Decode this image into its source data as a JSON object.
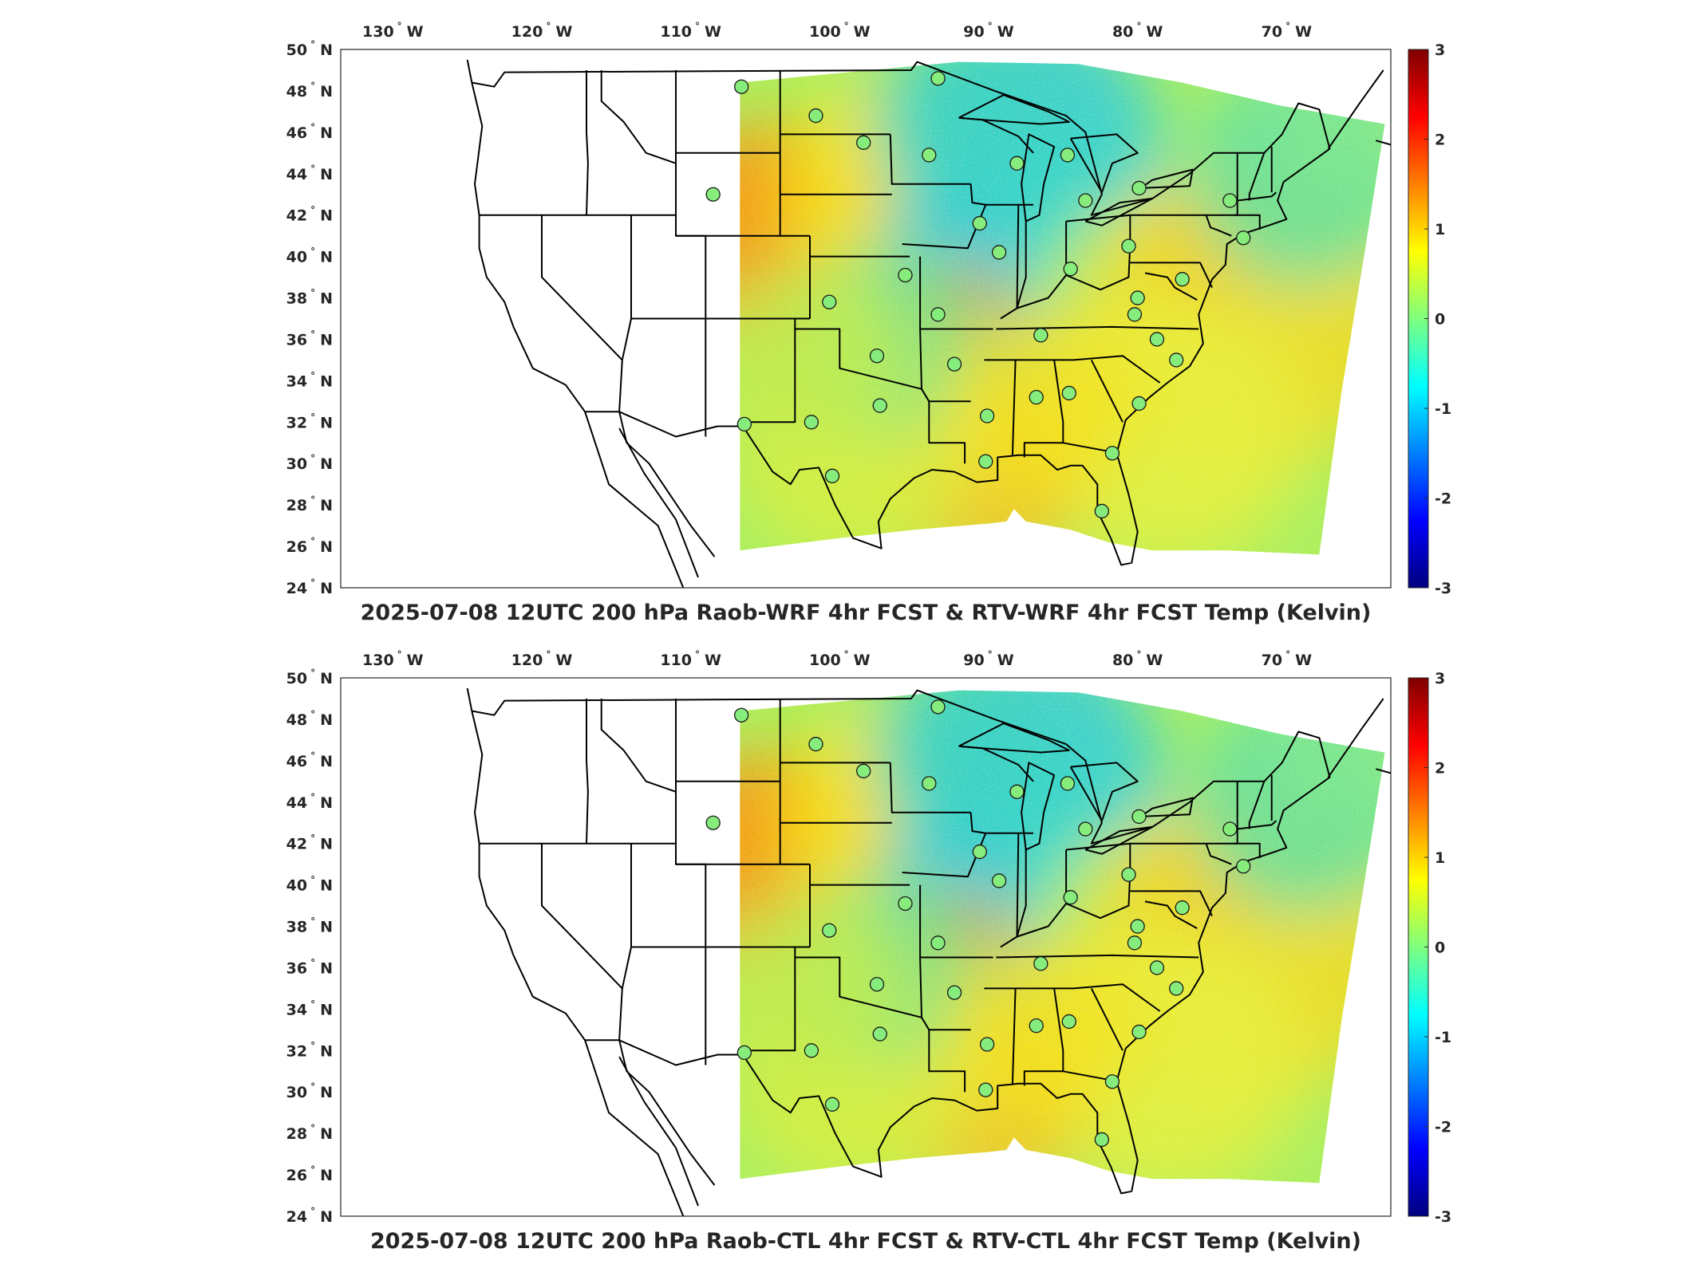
{
  "panels": [
    {
      "title": "2025-07-08 12UTC 200 hPa Raob-WRF 4hr FCST & RTV-WRF 4hr FCST Temp (Kelvin)",
      "lon_ticks": [
        "130",
        "120",
        "110",
        "100",
        "90",
        "80",
        "70"
      ],
      "lat_ticks": [
        "50",
        "48",
        "46",
        "44",
        "42",
        "40",
        "38",
        "36",
        "34",
        "32",
        "30",
        "28",
        "26",
        "24"
      ],
      "lon_hemisphere": "W",
      "lat_hemisphere": "N",
      "colorbar_ticks": [
        "3",
        "2",
        "1",
        "0",
        "-1",
        "-2",
        "-3"
      ]
    },
    {
      "title": "2025-07-08 12UTC 200 hPa Raob-CTL 4hr FCST & RTV-CTL 4hr FCST Temp (Kelvin)",
      "lon_ticks": [
        "130",
        "120",
        "110",
        "100",
        "90",
        "80",
        "70"
      ],
      "lat_ticks": [
        "50",
        "48",
        "46",
        "44",
        "42",
        "40",
        "38",
        "36",
        "34",
        "32",
        "30",
        "28",
        "26",
        "24"
      ],
      "lon_hemisphere": "W",
      "lat_hemisphere": "N",
      "colorbar_ticks": [
        "3",
        "2",
        "1",
        "0",
        "-1",
        "-2",
        "-3"
      ]
    }
  ],
  "colormap": [
    "#00007f",
    "#0000ff",
    "#007fff",
    "#00ffff",
    "#7fff7f",
    "#ffff00",
    "#ff7f00",
    "#ff0000",
    "#7f0000"
  ],
  "colorbar_range": [
    -3,
    3
  ],
  "stations": [
    {
      "lon": -106.6,
      "lat": 48.2
    },
    {
      "lon": -108.5,
      "lat": 43.0
    },
    {
      "lon": -101.6,
      "lat": 46.8
    },
    {
      "lon": -98.4,
      "lat": 45.5
    },
    {
      "lon": -93.4,
      "lat": 48.6
    },
    {
      "lon": -94.0,
      "lat": 44.9
    },
    {
      "lon": -88.1,
      "lat": 44.5
    },
    {
      "lon": -84.7,
      "lat": 44.9
    },
    {
      "lon": -83.5,
      "lat": 42.7
    },
    {
      "lon": -90.6,
      "lat": 41.6
    },
    {
      "lon": -89.3,
      "lat": 40.2
    },
    {
      "lon": -95.6,
      "lat": 39.1
    },
    {
      "lon": -100.7,
      "lat": 37.8
    },
    {
      "lon": -93.4,
      "lat": 37.2
    },
    {
      "lon": -86.5,
      "lat": 36.2
    },
    {
      "lon": -84.5,
      "lat": 39.4
    },
    {
      "lon": -80.6,
      "lat": 40.5
    },
    {
      "lon": -80.2,
      "lat": 37.2
    },
    {
      "lon": -78.7,
      "lat": 36.0
    },
    {
      "lon": -77.0,
      "lat": 38.9
    },
    {
      "lon": -77.4,
      "lat": 35.0
    },
    {
      "lon": -73.8,
      "lat": 42.7
    },
    {
      "lon": -72.9,
      "lat": 40.9
    },
    {
      "lon": -79.9,
      "lat": 32.9
    },
    {
      "lon": -81.7,
      "lat": 30.5
    },
    {
      "lon": -82.4,
      "lat": 27.7
    },
    {
      "lon": -84.6,
      "lat": 33.4
    },
    {
      "lon": -86.8,
      "lat": 33.2
    },
    {
      "lon": -90.1,
      "lat": 32.3
    },
    {
      "lon": -92.3,
      "lat": 34.8
    },
    {
      "lon": -97.5,
      "lat": 35.2
    },
    {
      "lon": -97.3,
      "lat": 32.8
    },
    {
      "lon": -101.9,
      "lat": 32.0
    },
    {
      "lon": -106.4,
      "lat": 31.9
    },
    {
      "lon": -100.5,
      "lat": 29.4
    },
    {
      "lon": -90.2,
      "lat": 30.1
    },
    {
      "lon": -79.9,
      "lat": 43.3
    },
    {
      "lon": -80.0,
      "lat": 38.0
    }
  ]
}
